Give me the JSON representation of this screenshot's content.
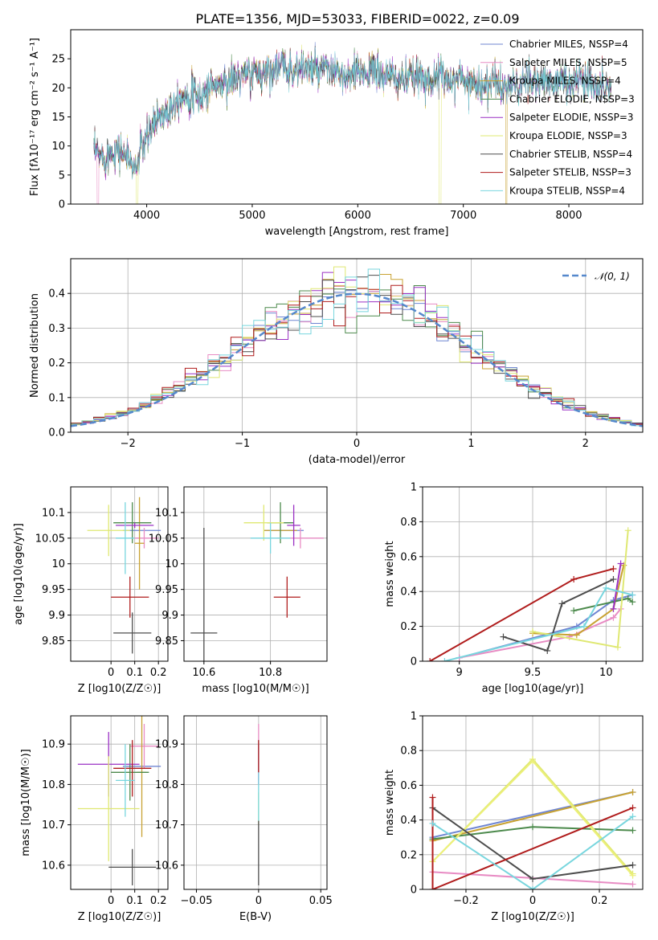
{
  "page_title": "PLATE=1356, MJD=53033, FIBERID=0022, z=0.09",
  "colors": {
    "Chabrier MILES": "#6f86d2",
    "Salpeter MILES": "#e88cc4",
    "Kroupa MILES": "#c8a232",
    "Chabrier ELODIE": "#4c8a4c",
    "Salpeter ELODIE": "#9a30c4",
    "Kroupa ELODIE": "#dfe872",
    "Chabrier STELIB": "#4d4d4d",
    "Salpeter STELIB": "#b01c1c",
    "Kroupa STELIB": "#78d6de",
    "Kroupa ELODIE-h": "#ecf07a",
    "normal": "#5588cc",
    "extra": "#e07836"
  },
  "chart_data": [
    {
      "id": "spectrum",
      "type": "line",
      "xlabel": "wavelength [Angstrom, rest frame]",
      "ylabel": "Flux [fλ10⁻¹⁷ erg cm⁻² s⁻¹ A⁻¹]",
      "xlim": [
        3280,
        8700
      ],
      "ylim": [
        0,
        30
      ],
      "xticks": [
        4000,
        5000,
        6000,
        7000,
        8000
      ],
      "yticks": [
        0,
        5,
        10,
        15,
        20,
        25
      ],
      "legend_position": "top-right",
      "legend": [
        "Chabrier MILES, NSSP=4",
        "Salpeter MILES, NSSP=5",
        "Kroupa MILES, NSSP=4",
        "Chabrier ELODIE, NSSP=3",
        "Salpeter ELODIE, NSSP=3",
        "Kroupa ELODIE, NSSP=3",
        "Chabrier STELIB, NSSP=4",
        "Salpeter STELIB, NSSP=3",
        "Kroupa STELIB, NSSP=4"
      ],
      "envelope": {
        "x": [
          3500,
          3600,
          3700,
          3800,
          3900,
          3950,
          4000,
          4100,
          4200,
          4300,
          4400,
          4500,
          4600,
          4700,
          4800,
          4900,
          5000,
          5100,
          5200,
          5300,
          5400,
          5500,
          5600,
          5700,
          5800,
          5900,
          6000,
          6100,
          6200,
          6300,
          6400,
          6500,
          6600,
          6700,
          6800,
          6900,
          7000,
          7100,
          7200,
          7300,
          7400,
          7500,
          7600,
          7700,
          7800,
          7900,
          8000,
          8100,
          8200,
          8300,
          8400
        ],
        "y": [
          9,
          8,
          9.5,
          8.5,
          6,
          10,
          11,
          15,
          16,
          18.5,
          19,
          18,
          20.5,
          20.5,
          21.5,
          22,
          22.5,
          22.5,
          23.5,
          23.5,
          23,
          23.5,
          23,
          23,
          22.5,
          21.5,
          22.5,
          23,
          22.5,
          22,
          21.5,
          21.5,
          22,
          21.5,
          22,
          21.5,
          21.5,
          21,
          20.5,
          21,
          20,
          20.5,
          21,
          21,
          21,
          21,
          21,
          21.5,
          21,
          20.5,
          20
        ]
      }
    },
    {
      "id": "residuals",
      "type": "histogram",
      "xlabel": "(data-model)/error",
      "ylabel": "Normed distribution",
      "xlim": [
        -2.5,
        2.5
      ],
      "ylim": [
        0,
        0.5
      ],
      "xticks": [
        -2,
        -1,
        0,
        1,
        2
      ],
      "yticks": [
        0.0,
        0.1,
        0.2,
        0.3,
        0.4
      ],
      "legend": [
        "N(0,1)"
      ],
      "legend_position": "top-right",
      "bin_width": 0.1
    },
    {
      "id": "age-vs-z",
      "type": "errorbar",
      "xlabel": "Z [log10(Z/Z☉)]",
      "ylabel": "age  [log10(age/yr)]",
      "xlim": [
        -0.17,
        0.24
      ],
      "ylim": [
        9.81,
        10.15
      ],
      "xticks": [
        0.0,
        0.1,
        0.2
      ],
      "yticks": [
        9.85,
        9.9,
        9.95,
        10.0,
        10.05,
        10.1
      ],
      "points": [
        {
          "s": "Chabrier MILES",
          "x": 0.13,
          "y": 10.065,
          "xe": 0.08,
          "ye": 0.0
        },
        {
          "s": "Salpeter MILES",
          "x": 0.14,
          "y": 10.05,
          "xe": 0.06,
          "ye": 0.02
        },
        {
          "s": "Kroupa MILES",
          "x": 0.12,
          "y": 10.04,
          "xe": 0.02,
          "ye": 0.09
        },
        {
          "s": "Chabrier ELODIE",
          "x": 0.09,
          "y": 10.08,
          "xe": 0.08,
          "ye": 0.04
        },
        {
          "s": "Salpeter ELODIE",
          "x": 0.1,
          "y": 10.075,
          "xe": 0.08,
          "ye": 0.005
        },
        {
          "s": "Kroupa ELODIE",
          "x": -0.01,
          "y": 10.065,
          "xe": 0.09,
          "ye": 0.05
        },
        {
          "s": "Chabrier STELIB",
          "x": 0.09,
          "y": 9.865,
          "xe": 0.08,
          "ye": 0.04
        },
        {
          "s": "Salpeter STELIB",
          "x": 0.08,
          "y": 9.935,
          "xe": 0.08,
          "ye": 0.04
        },
        {
          "s": "Kroupa STELIB",
          "x": 0.06,
          "y": 10.05,
          "xe": 0.04,
          "ye": 0.07
        }
      ]
    },
    {
      "id": "age-vs-mass",
      "type": "errorbar",
      "xlabel": "mass [log10(M/M☉)]",
      "ylabel": "",
      "xlim": [
        10.54,
        10.97
      ],
      "ylim": [
        9.81,
        10.15
      ],
      "xticks": [
        10.6,
        10.8
      ],
      "yticks": [
        9.85,
        9.9,
        9.95,
        10.0,
        10.05,
        10.1
      ],
      "points": [
        {
          "s": "Chabrier MILES",
          "x": 10.84,
          "y": 10.065,
          "xe": 0.06,
          "ye": 0.0
        },
        {
          "s": "Salpeter MILES",
          "x": 10.89,
          "y": 10.05,
          "xe": 0.07,
          "ye": 0.02
        },
        {
          "s": "Kroupa MILES",
          "x": 10.83,
          "y": 10.065,
          "xe": 0.05,
          "ye": 0.0
        },
        {
          "s": "Chabrier ELODIE",
          "x": 10.83,
          "y": 10.08,
          "xe": 0.04,
          "ye": 0.04
        },
        {
          "s": "Salpeter ELODIE",
          "x": 10.87,
          "y": 10.075,
          "xe": 0.02,
          "ye": 0.04
        },
        {
          "s": "Kroupa ELODIE",
          "x": 10.78,
          "y": 10.08,
          "xe": 0.06,
          "ye": 0.035
        },
        {
          "s": "Chabrier STELIB",
          "x": 10.6,
          "y": 9.865,
          "xe": 0.04,
          "ye": 0.205
        },
        {
          "s": "Salpeter STELIB",
          "x": 10.85,
          "y": 9.935,
          "xe": 0.04,
          "ye": 0.04
        },
        {
          "s": "Kroupa STELIB",
          "x": 10.8,
          "y": 10.05,
          "xe": 0.06,
          "ye": 0.03
        }
      ]
    },
    {
      "id": "weight-vs-age",
      "type": "line",
      "xlabel": "age  [log10(age/yr)]",
      "ylabel": "mass weight",
      "xlim": [
        8.75,
        10.25
      ],
      "ylim": [
        0,
        1.0
      ],
      "xticks": [
        9.0,
        9.5,
        10.0
      ],
      "yticks": [
        0.0,
        0.2,
        0.4,
        0.6,
        0.8,
        1.0
      ],
      "series": [
        {
          "s": "Chabrier MILES",
          "x": [
            9.0,
            9.8,
            10.05,
            10.18
          ],
          "y": [
            0.02,
            0.2,
            0.35,
            0.38
          ]
        },
        {
          "s": "Salpeter MILES",
          "x": [
            9.0,
            9.75,
            10.05,
            10.1
          ],
          "y": [
            0.02,
            0.14,
            0.25,
            0.3
          ]
        },
        {
          "s": "Kroupa MILES",
          "x": [
            9.5,
            9.8,
            10.05,
            10.12
          ],
          "y": [
            0.16,
            0.15,
            0.3,
            0.55
          ]
        },
        {
          "s": "Chabrier ELODIE",
          "x": [
            9.78,
            10.15,
            10.18
          ],
          "y": [
            0.29,
            0.36,
            0.34
          ]
        },
        {
          "s": "Salpeter ELODIE",
          "x": [
            10.05,
            10.1
          ],
          "y": [
            0.3,
            0.56
          ]
        },
        {
          "s": "Kroupa ELODIE",
          "x": [
            9.5,
            10.08,
            10.15
          ],
          "y": [
            0.17,
            0.08,
            0.75
          ]
        },
        {
          "s": "Chabrier STELIB",
          "x": [
            9.3,
            9.6,
            9.7,
            10.05
          ],
          "y": [
            0.14,
            0.06,
            0.33,
            0.47
          ]
        },
        {
          "s": "Salpeter STELIB",
          "x": [
            8.8,
            9.78,
            10.05
          ],
          "y": [
            0.0,
            0.47,
            0.53
          ]
        },
        {
          "s": "Kroupa STELIB",
          "x": [
            8.9,
            9.85,
            10.0,
            10.18
          ],
          "y": [
            0.0,
            0.2,
            0.42,
            0.38
          ]
        }
      ]
    },
    {
      "id": "mass-vs-z",
      "type": "errorbar",
      "xlabel": "Z [log10(Z/Z☉)]",
      "ylabel": "mass [log10(M/M☉)]",
      "xlim": [
        -0.17,
        0.24
      ],
      "ylim": [
        10.54,
        10.97
      ],
      "xticks": [
        0.0,
        0.1,
        0.2
      ],
      "yticks": [
        10.6,
        10.7,
        10.8,
        10.9
      ],
      "points": [
        {
          "s": "Chabrier MILES",
          "x": 0.13,
          "y": 10.845,
          "xe": 0.08,
          "ye": 0.0
        },
        {
          "s": "Salpeter MILES",
          "x": 0.14,
          "y": 10.895,
          "xe": 0.06,
          "ye": 0.055
        },
        {
          "s": "Kroupa MILES",
          "x": 0.13,
          "y": 10.83,
          "xe": 0.02,
          "ye": 0.16
        },
        {
          "s": "Chabrier ELODIE",
          "x": 0.08,
          "y": 10.83,
          "xe": 0.08,
          "ye": 0.07
        },
        {
          "s": "Salpeter ELODIE",
          "x": -0.01,
          "y": 10.85,
          "xe": 0.13,
          "ye": 0.08
        },
        {
          "s": "Kroupa ELODIE",
          "x": -0.01,
          "y": 10.74,
          "xe": 0.13,
          "ye": 0.13
        },
        {
          "s": "Chabrier STELIB",
          "x": 0.09,
          "y": 10.595,
          "xe": 0.1,
          "ye": 0.045
        },
        {
          "s": "Salpeter STELIB",
          "x": 0.09,
          "y": 10.84,
          "xe": 0.08,
          "ye": 0.07
        },
        {
          "s": "Kroupa STELIB",
          "x": 0.06,
          "y": 10.81,
          "xe": 0.04,
          "ye": 0.09
        }
      ]
    },
    {
      "id": "mass-vs-ebv",
      "type": "errorbar",
      "xlabel": "E(B-V)",
      "ylabel": "",
      "xlim": [
        -0.06,
        0.055
      ],
      "ylim": [
        10.54,
        10.97
      ],
      "xticks": [
        -0.05,
        0.0,
        0.05
      ],
      "yticks": [
        10.6,
        10.7,
        10.8,
        10.9
      ],
      "points": [
        {
          "s": "Salpeter MILES",
          "x": 0.0,
          "y": 10.88,
          "xe": 0.0,
          "ye": 0.07
        },
        {
          "s": "Salpeter ELODIE",
          "x": 0.0,
          "y": 10.85,
          "xe": 0.0,
          "ye": 0.05
        },
        {
          "s": "Kroupa ELODIE",
          "x": 0.0,
          "y": 10.74,
          "xe": 0.0,
          "ye": 0.04
        },
        {
          "s": "Kroupa STELIB",
          "x": 0.0,
          "y": 10.81,
          "xe": 0.0,
          "ye": 0.1
        },
        {
          "s": "Salpeter STELIB",
          "x": 0.0,
          "y": 10.87,
          "xe": 0.0,
          "ye": 0.04
        },
        {
          "s": "Chabrier STELIB",
          "x": 0.0,
          "y": 10.63,
          "xe": 0.0,
          "ye": 0.08
        }
      ]
    },
    {
      "id": "weight-vs-z",
      "type": "line",
      "xlabel": "Z [log10(Z/Z☉)]",
      "ylabel": "mass weight",
      "xlim": [
        -0.33,
        0.33
      ],
      "ylim": [
        0,
        1.0
      ],
      "xticks": [
        -0.2,
        0.0,
        0.2
      ],
      "yticks": [
        0.0,
        0.2,
        0.4,
        0.6,
        0.8,
        1.0
      ],
      "series": [
        {
          "s": "Chabrier MILES",
          "x": [
            -0.3,
            0.3
          ],
          "y": [
            0.3,
            0.56
          ]
        },
        {
          "s": "Salpeter MILES",
          "x": [
            -0.3,
            0.3
          ],
          "y": [
            0.1,
            0.03
          ]
        },
        {
          "s": "Kroupa MILES",
          "x": [
            -0.3,
            0.3
          ],
          "y": [
            0.28,
            0.56
          ]
        },
        {
          "s": "Chabrier ELODIE",
          "x": [
            -0.3,
            0.0,
            0.3
          ],
          "y": [
            0.29,
            0.36,
            0.34
          ]
        },
        {
          "s": "Kroupa ELODIE",
          "x": [
            -0.3,
            0.0,
            0.3
          ],
          "y": [
            0.16,
            0.75,
            0.09
          ]
        },
        {
          "s": "Kroupa ELODIE-h",
          "x": [
            -0.3,
            0.0,
            0.3
          ],
          "y": [
            0.16,
            0.74,
            0.08
          ]
        },
        {
          "s": "Chabrier STELIB",
          "x": [
            -0.3,
            0.0,
            0.3
          ],
          "y": [
            0.47,
            0.06,
            0.14
          ]
        },
        {
          "s": "Salpeter STELIB",
          "x": [
            -0.3,
            -0.3,
            0.3
          ],
          "y": [
            0.53,
            0.0,
            0.47
          ]
        },
        {
          "s": "Kroupa STELIB",
          "x": [
            -0.3,
            0.0,
            0.3
          ],
          "y": [
            0.38,
            0.0,
            0.42
          ]
        }
      ]
    }
  ]
}
